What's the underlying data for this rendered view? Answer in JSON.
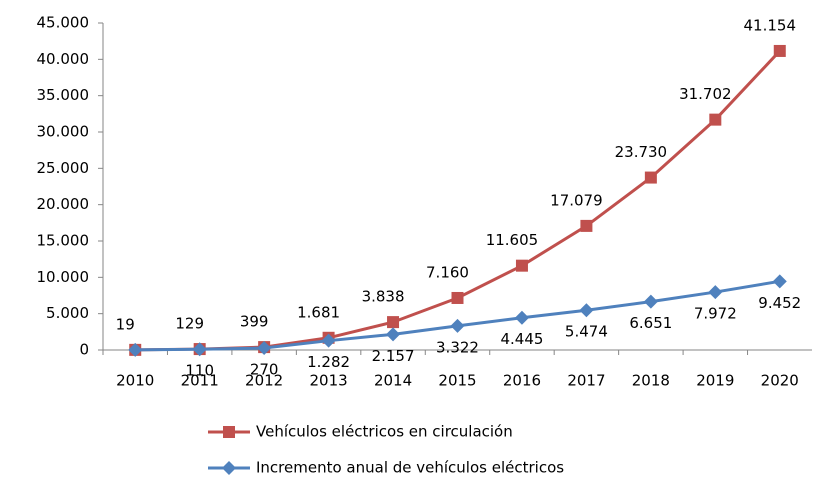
{
  "chart_data": {
    "type": "line",
    "categories": [
      "2010",
      "2011",
      "2012",
      "2013",
      "2014",
      "2015",
      "2016",
      "2017",
      "2018",
      "2019",
      "2020"
    ],
    "series": [
      {
        "name": "Vehículos eléctricos en circulación",
        "color": "#c0504d",
        "marker": "square",
        "values": [
          19,
          129,
          399,
          1681,
          3838,
          7160,
          11605,
          17079,
          23730,
          31702,
          41154
        ],
        "value_labels": [
          "19",
          "129",
          "399",
          "1.681",
          "3.838",
          "7.160",
          "11.605",
          "17.079",
          "23.730",
          "31.702",
          "41.154"
        ]
      },
      {
        "name": "Incremento anual de vehículos eléctricos",
        "color": "#4f81bd",
        "marker": "diamond",
        "values": [
          19,
          110,
          270,
          1282,
          2157,
          3322,
          4445,
          5474,
          6651,
          7972,
          9452
        ],
        "value_labels": [
          null,
          "110",
          "270",
          "1.282",
          "2.157",
          "3.322",
          "4.445",
          "5.474",
          "6.651",
          "7.972",
          "9.452"
        ]
      }
    ],
    "ylim": [
      0,
      45000
    ],
    "yticks": [
      0,
      {
        "value": 5000,
        "label": "5.000"
      },
      {
        "value": 10000,
        "label": "10.000"
      },
      {
        "value": 15000,
        "label": "15.000"
      },
      {
        "value": 20000,
        "label": "20.000"
      },
      {
        "value": 25000,
        "label": "25.000"
      },
      {
        "value": 30000,
        "label": "30.000"
      },
      {
        "value": 35000,
        "label": "35.000"
      },
      {
        "value": 40000,
        "label": "40.000"
      },
      {
        "value": 45000,
        "label": "45.000"
      }
    ],
    "grid": false,
    "legend": "bottom"
  }
}
